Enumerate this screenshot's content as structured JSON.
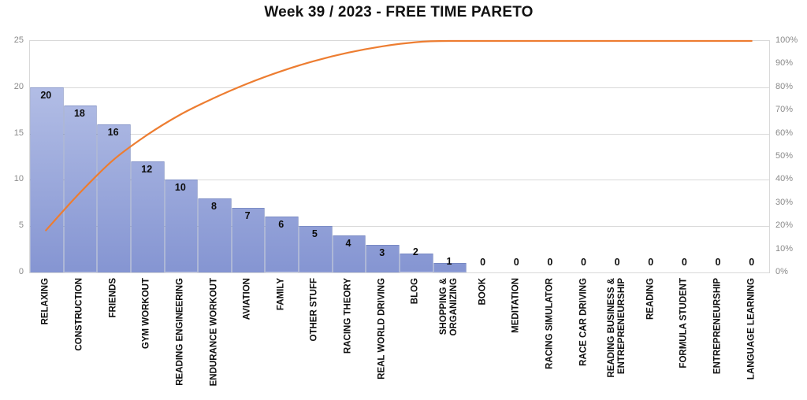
{
  "title": "Week 39 / 2023 - FREE TIME PARETO",
  "chart_data": {
    "type": "bar",
    "subtype": "pareto-combo-bar-and-cumulative-line",
    "title": "Week 39 / 2023 - FREE TIME PARETO",
    "categories": [
      "RELAXING",
      "CONSTRUCTION",
      "FRIENDS",
      "GYM WORKOUT",
      "READING ENGINEERING",
      "ENDURANCE WORKOUT",
      "AVIATION",
      "FAMILY",
      "OTHER STUFF",
      "RACING THEORY",
      "REAL WORLD DRIVING",
      "BLOG",
      "SHOPPING &\nORGANIZING",
      "BOOK",
      "MEDITATION",
      "RACING SIMULATOR",
      "RACE CAR DRIVING",
      "READING BUSINESS &\nENTREPRENEURSHIP",
      "READING",
      "FORMULA STUDENT",
      "ENTREPRENEURSHIP",
      "LANGUAGE LEARNING"
    ],
    "series": [
      {
        "name": "bars",
        "type": "bar",
        "values": [
          20,
          18,
          16,
          12,
          10,
          8,
          7,
          6,
          5,
          4,
          3,
          2,
          1,
          0,
          0,
          0,
          0,
          0,
          0,
          0,
          0,
          0
        ],
        "data_labels": [
          "20",
          "18",
          "16",
          "12",
          "10",
          "8",
          "7",
          "6",
          "5",
          "4",
          "3",
          "2",
          "1",
          "0",
          "0",
          "0",
          "0",
          "0",
          "0",
          "0",
          "0",
          "0"
        ]
      },
      {
        "name": "cumulative-percent",
        "type": "line",
        "smooth": true,
        "values": [
          17.86,
          33.93,
          48.21,
          58.93,
          67.86,
          75.0,
          81.25,
          86.61,
          91.07,
          94.64,
          97.32,
          99.11,
          100,
          100,
          100,
          100,
          100,
          100,
          100,
          100,
          100,
          100
        ]
      }
    ],
    "left_axis": {
      "min": 0,
      "max": 25,
      "ticks": [
        0,
        5,
        10,
        15,
        20,
        25
      ]
    },
    "right_axis": {
      "min_label": "0%",
      "max_label": "100%",
      "ticks": [
        "0%",
        "10%",
        "20%",
        "30%",
        "40%",
        "50%",
        "60%",
        "70%",
        "80%",
        "90%",
        "100%"
      ]
    },
    "grid": true,
    "legend_position": "none",
    "colors": {
      "bar_fill_top": "#bdc7ea",
      "bar_fill_bottom": "#8595d2",
      "bar_border": "#6a7cb6",
      "line": "#ED7D31",
      "gridline": "#d9d9d9",
      "axis_text": "#8a8a8a",
      "label_text": "#0d0d0d",
      "title_text": "#111111",
      "background": "#ffffff"
    }
  }
}
